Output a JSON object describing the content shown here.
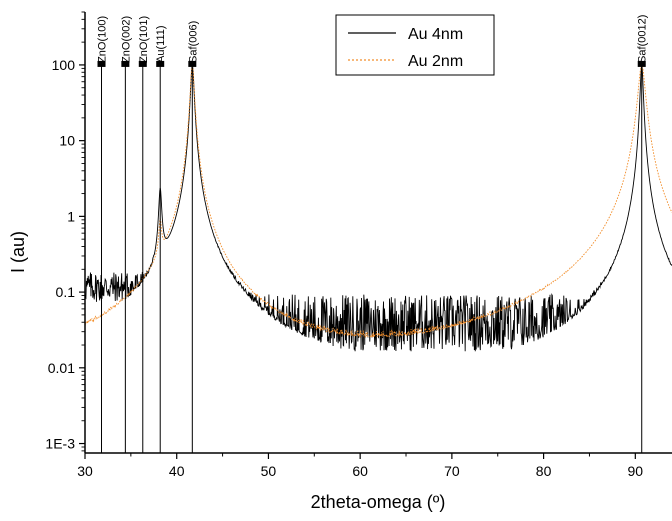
{
  "chart_data": {
    "type": "line",
    "xlabel": "2theta-omega (º)",
    "ylabel": "I (au)",
    "xlim": [
      30,
      94
    ],
    "ylim": [
      0.00075,
      500
    ],
    "yscale": "log",
    "x_ticks": [
      30,
      40,
      50,
      60,
      70,
      80,
      90
    ],
    "y_ticks": [
      {
        "value": 0.001,
        "label": "1E-3"
      },
      {
        "value": 0.01,
        "label": "0.01"
      },
      {
        "value": 0.1,
        "label": "0.1"
      },
      {
        "value": 1,
        "label": "1"
      },
      {
        "value": 10,
        "label": "10"
      },
      {
        "value": 100,
        "label": "100"
      }
    ],
    "legend": {
      "position": "top-center"
    },
    "series": [
      {
        "name": "Au 4nm",
        "color": "#000000",
        "style": "solid",
        "baseline_segments": [
          {
            "x": [
              30,
              37.5
            ],
            "center": 0.09,
            "spread": 1.6
          },
          {
            "x": [
              42.5,
              90
            ],
            "center": 0.03,
            "spread": 2.4
          },
          {
            "x": [
              91.5,
              94
            ],
            "center": 0.03,
            "spread": 2.0
          }
        ],
        "peaks": [
          {
            "x": 38.2,
            "y": 2.1,
            "width": 0.3
          },
          {
            "x": 41.7,
            "y": 100,
            "width": 0.35
          },
          {
            "x": 90.7,
            "y": 100,
            "width": 0.3
          }
        ]
      },
      {
        "name": "Au 2nm",
        "color": "#f28e2b",
        "style": "dotted",
        "baseline_segments": [
          {
            "x": [
              30,
              37.5
            ],
            "center": 0.018,
            "spread": 1.6
          },
          {
            "x": [
              43,
              88
            ],
            "center": 0.008,
            "spread": 2.6
          },
          {
            "x": [
              88,
              94
            ],
            "center": 0.015,
            "spread": 1.8
          }
        ],
        "peaks": [
          {
            "x": 38.2,
            "y": 0.6,
            "width": 0.3
          },
          {
            "x": 41.7,
            "y": 100,
            "width": 0.4
          },
          {
            "x": 90.7,
            "y": 100,
            "width": 0.7
          }
        ]
      }
    ],
    "reference_lines": [
      {
        "x": 31.8,
        "label": "ZnO(100)"
      },
      {
        "x": 34.4,
        "label": "ZnO(002)"
      },
      {
        "x": 36.3,
        "label": "ZnO(101)"
      },
      {
        "x": 38.2,
        "label": "Au(111)"
      },
      {
        "x": 41.7,
        "label": "Saf(006)"
      },
      {
        "x": 90.7,
        "label": "Saf(0012)"
      }
    ]
  }
}
